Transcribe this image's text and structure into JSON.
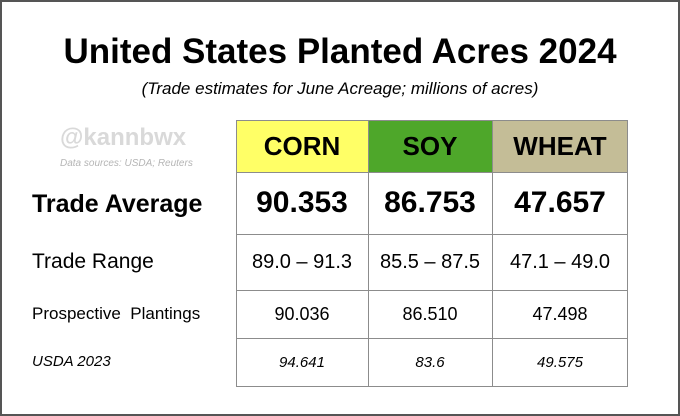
{
  "chart_data": {
    "type": "table",
    "title": "United States Planted Acres 2024",
    "subtitle": "(Trade estimates for June Acreage; millions of acres)",
    "watermark": "@kannbwx",
    "sources": "Data sources: USDA; Reuters",
    "columns": [
      {
        "name": "CORN",
        "color": "#ffff66"
      },
      {
        "name": "SOY",
        "color": "#4ea72a"
      },
      {
        "name": "WHEAT",
        "color": "#c4bd97"
      }
    ],
    "rows": [
      {
        "label": "Trade Average",
        "values": [
          "90.353",
          "86.753",
          "47.657"
        ]
      },
      {
        "label": "Trade Range",
        "values": [
          "89.0 – 91.3",
          "85.5 – 87.5",
          "47.1 – 49.0"
        ]
      },
      {
        "label": "Prospective  Plantings",
        "values": [
          "90.036",
          "86.510",
          "47.498"
        ]
      },
      {
        "label": "USDA 2023",
        "values": [
          "94.641",
          "83.6",
          "49.575"
        ]
      }
    ]
  }
}
